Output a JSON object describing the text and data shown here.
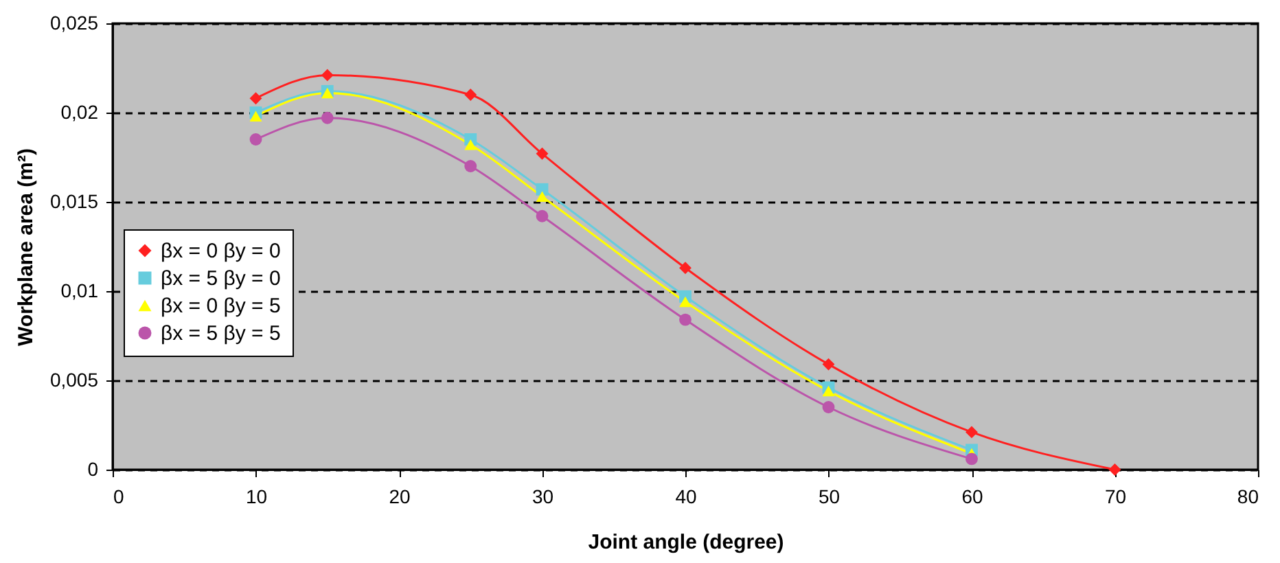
{
  "chart_data": {
    "type": "line",
    "xlabel": "Joint angle (degree)",
    "ylabel": "Workplane area (m²)",
    "x": [
      10,
      15,
      25,
      30,
      40,
      50,
      60,
      70
    ],
    "series": [
      {
        "name": "βx = 0 βy = 0",
        "color": "#ff2020",
        "marker": "diamond",
        "values": [
          0.0208,
          0.0221,
          0.021,
          0.0177,
          0.0113,
          0.0059,
          0.0021,
          0.0
        ]
      },
      {
        "name": "βx = 5 βy = 0",
        "color": "#66ccdd",
        "marker": "square",
        "values": [
          0.02,
          0.0212,
          0.0185,
          0.0157,
          0.0097,
          0.0046,
          0.0011,
          null
        ]
      },
      {
        "name": "βx = 0 βy = 5",
        "color": "#ffff00",
        "marker": "triangle",
        "values": [
          0.0198,
          0.0211,
          0.0182,
          0.0153,
          0.0094,
          0.0044,
          0.0009,
          null
        ]
      },
      {
        "name": "βx = 5 βy = 5",
        "color": "#bb55aa",
        "marker": "circle",
        "values": [
          0.0185,
          0.0197,
          0.017,
          0.0142,
          0.0084,
          0.0035,
          0.0006,
          null
        ]
      }
    ],
    "xlim": [
      0,
      80
    ],
    "xticks": [
      0,
      10,
      20,
      30,
      40,
      50,
      60,
      70,
      80
    ],
    "ylim": [
      0,
      0.025
    ],
    "yticks": [
      0,
      {
        "value": 0.005,
        "label": "0,005"
      },
      {
        "value": 0.01,
        "label": "0,01"
      },
      {
        "value": 0.015,
        "label": "0,015"
      },
      {
        "value": 0.02,
        "label": "0,02"
      },
      {
        "value": 0.025,
        "label": "0,025"
      }
    ],
    "grid": "y",
    "legend": "left",
    "line_style": "solid"
  }
}
